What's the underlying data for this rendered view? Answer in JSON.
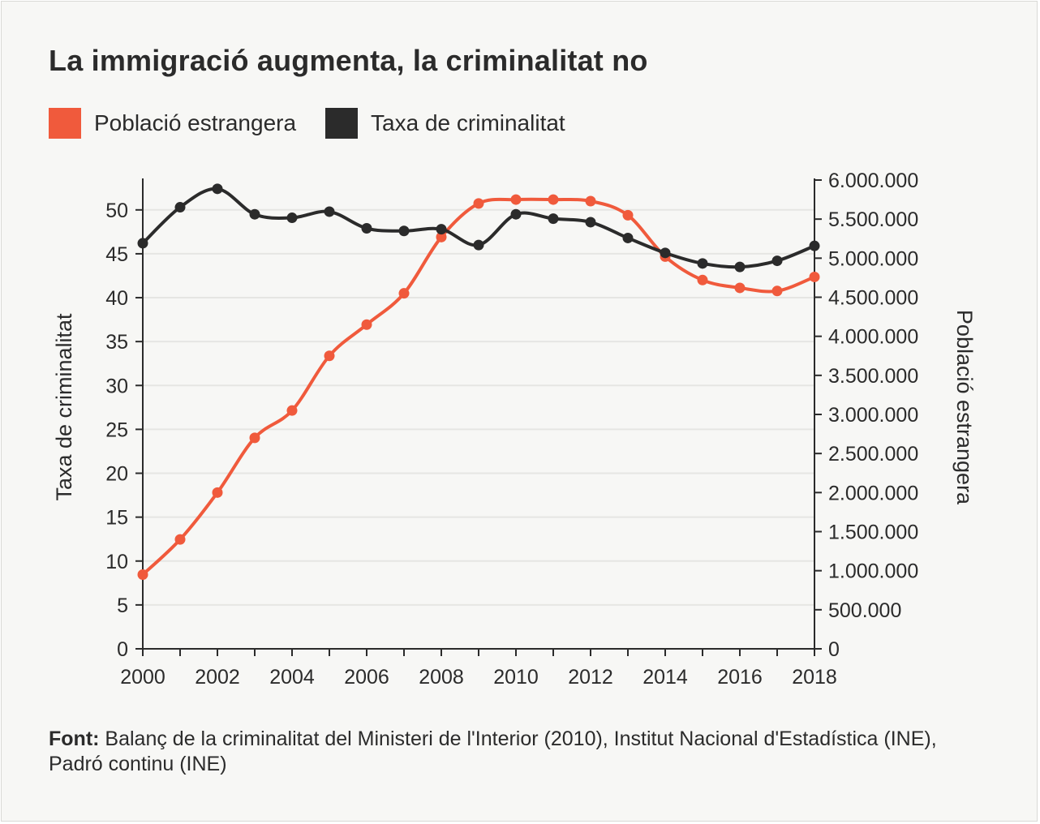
{
  "chart_data": {
    "type": "line",
    "title": "La immigració augmenta, la criminalitat no",
    "x": [
      2000,
      2001,
      2002,
      2003,
      2004,
      2005,
      2006,
      2007,
      2008,
      2009,
      2010,
      2011,
      2012,
      2013,
      2014,
      2015,
      2016,
      2017,
      2018
    ],
    "xticks": [
      "2000",
      "2002",
      "2004",
      "2006",
      "2008",
      "2010",
      "2012",
      "2014",
      "2016",
      "2018"
    ],
    "left_axis": {
      "label": "Taxa de criminalitat",
      "ylim": [
        0,
        53.4
      ],
      "ticks": [
        "0",
        "5",
        "10",
        "15",
        "20",
        "25",
        "30",
        "35",
        "40",
        "45",
        "50"
      ]
    },
    "right_axis": {
      "label": "Població estrangera",
      "ylim": [
        0,
        6000000
      ],
      "ticks": [
        "0",
        "500.000",
        "1.000.000",
        "1.500.000",
        "2.000.000",
        "2.500.000",
        "3.000.000",
        "3.500.000",
        "4.000.000",
        "4.500.000",
        "5.000.000",
        "5.500.000",
        "6.000.000"
      ]
    },
    "series": [
      {
        "name": "Població estrangera",
        "axis": "right",
        "color": "#f05a3c",
        "values": [
          950000,
          1400000,
          2000000,
          2700000,
          3050000,
          3750000,
          4150000,
          4550000,
          5270000,
          5700000,
          5750000,
          5750000,
          5730000,
          5550000,
          5020000,
          4720000,
          4620000,
          4580000,
          4760000
        ]
      },
      {
        "name": "Taxa de criminalitat",
        "axis": "left",
        "color": "#2b2b2b",
        "values": [
          46.2,
          50.3,
          52.4,
          49.5,
          49.1,
          49.8,
          47.9,
          47.6,
          47.8,
          46.0,
          49.5,
          49.0,
          48.6,
          46.8,
          45.1,
          43.9,
          43.5,
          44.2,
          45.9
        ]
      }
    ]
  },
  "legend": [
    {
      "label": "Població estrangera",
      "color": "#f05a3c"
    },
    {
      "label": "Taxa de criminalitat",
      "color": "#2b2b2b"
    }
  ],
  "source": {
    "prefix": "Font:",
    "text": " Balanç de la criminalitat del Ministeri de l'Interior (2010), Institut Nacional d'Estadística (INE), Padró continu (INE)"
  },
  "colors": {
    "background": "#f7f7f5",
    "grid": "#e6e6e3",
    "axis": "#2b2b2b"
  }
}
